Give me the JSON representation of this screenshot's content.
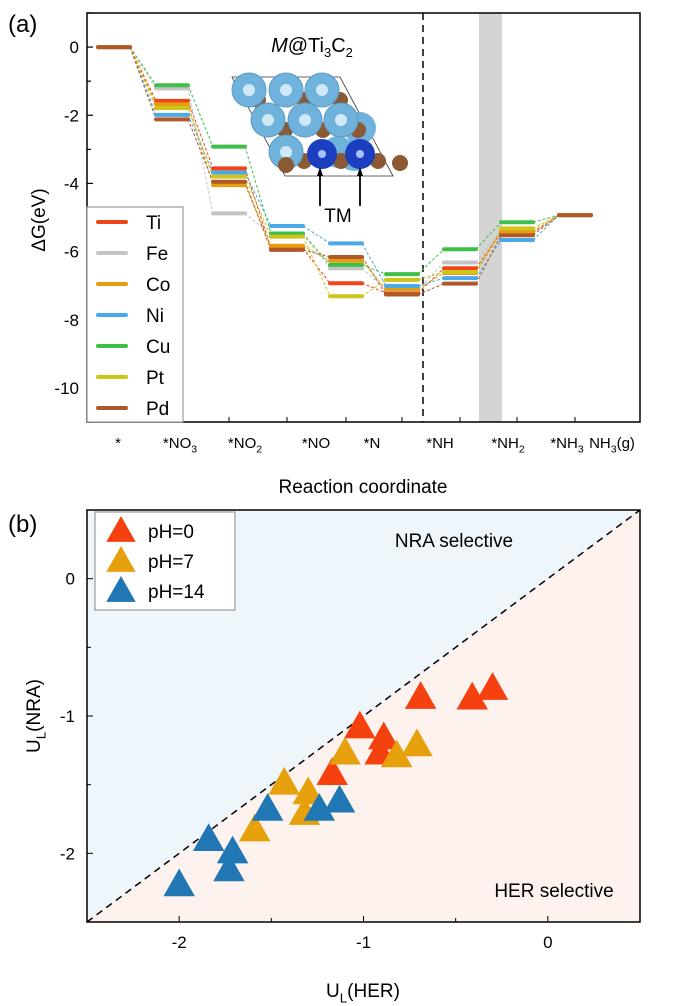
{
  "chart_data": [
    {
      "type": "line",
      "panel_label": "(a)",
      "title": "M@Ti3C2",
      "title_parts": {
        "italic": "M",
        "rest": "@Ti",
        "sub1": "3",
        "mid": "C",
        "sub2": "2"
      },
      "annotation": "TM",
      "xlabel": "Reaction coordinate",
      "ylabel": "ΔG(eV)",
      "ylim": [
        -11,
        1
      ],
      "yticks": [
        0,
        -2,
        -4,
        -6,
        -8,
        -10
      ],
      "categories": [
        {
          "t": "*",
          "s": ""
        },
        {
          "t": "*NO",
          "s": "3"
        },
        {
          "t": "*NO",
          "s": "2"
        },
        {
          "t": "*NO",
          "s": ""
        },
        {
          "t": "*N",
          "s": ""
        },
        {
          "t": "*NH",
          "s": ""
        },
        {
          "t": "*NH",
          "s": "2"
        },
        {
          "t": "*NH",
          "s": "3"
        },
        {
          "t": "NH",
          "s": "3",
          "after": "(g)"
        }
      ],
      "legend_position": "bottom-left",
      "series": [
        {
          "name": "Ti",
          "color": "#f0441b",
          "values": [
            0,
            -1.58,
            -3.56,
            -5.9,
            -6.93,
            -7.21,
            -6.49,
            -5.45,
            -4.93
          ]
        },
        {
          "name": "Fe",
          "color": "#c4c4c4",
          "values": [
            0,
            -1.21,
            -4.88,
            -5.5,
            -6.49,
            -7.12,
            -6.32,
            -5.4,
            -4.93
          ]
        },
        {
          "name": "Co",
          "color": "#e39f0f",
          "values": [
            0,
            -1.68,
            -4.05,
            -5.83,
            -6.27,
            -7.1,
            -6.63,
            -5.42,
            -4.93
          ]
        },
        {
          "name": "Ni",
          "color": "#4aa9e8",
          "values": [
            0,
            -1.99,
            -3.68,
            -5.25,
            -5.76,
            -7.01,
            -6.78,
            -5.66,
            -4.93
          ]
        },
        {
          "name": "Cu",
          "color": "#3fbf48",
          "values": [
            0,
            -1.12,
            -2.92,
            -5.47,
            -6.39,
            -6.66,
            -5.93,
            -5.14,
            -4.93
          ]
        },
        {
          "name": "Pt",
          "color": "#cfc41a",
          "values": [
            0,
            -1.79,
            -3.8,
            -5.56,
            -7.31,
            -6.83,
            -6.6,
            -5.32,
            -4.93
          ]
        },
        {
          "name": "Pd",
          "color": "#b0582a",
          "values": [
            0,
            -2.12,
            -3.95,
            -5.95,
            -6.16,
            -7.26,
            -6.94,
            -5.52,
            -4.93
          ]
        }
      ]
    },
    {
      "type": "scatter",
      "panel_label": "(b)",
      "xlabel": {
        "t": "U",
        "s": "L",
        "after": "(HER)"
      },
      "ylabel": {
        "t": "U",
        "s": "L",
        "after": "(NRA)"
      },
      "xlim": [
        -2.5,
        0.5
      ],
      "ylim": [
        -2.5,
        0.5
      ],
      "xticks": [
        -2,
        -1,
        0
      ],
      "yticks": [
        0,
        -1,
        -2
      ],
      "region_labels": [
        "NRA selective",
        "HER selective"
      ],
      "legend_position": "top-left",
      "series": [
        {
          "name": "pH=0",
          "color": "#f5410f",
          "x": [
            -0.69,
            -0.41,
            -0.3,
            -1.02,
            -0.89,
            -0.91,
            -1.17
          ],
          "y": [
            -0.855,
            -0.86,
            -0.79,
            -1.07,
            -1.15,
            -1.26,
            -1.41
          ]
        },
        {
          "name": "pH=7",
          "color": "#e5a00c",
          "x": [
            -0.71,
            -0.82,
            -1.1,
            -1.43,
            -1.3,
            -1.32,
            -1.59
          ],
          "y": [
            -1.2,
            -1.28,
            -1.26,
            -1.48,
            -1.55,
            -1.7,
            -1.82
          ]
        },
        {
          "name": "pH=14",
          "color": "#2077b4",
          "x": [
            -1.13,
            -1.24,
            -1.52,
            -1.84,
            -1.71,
            -1.73,
            -2.0
          ],
          "y": [
            -1.61,
            -1.67,
            -1.67,
            -1.89,
            -1.98,
            -2.11,
            -2.22
          ]
        }
      ]
    }
  ]
}
